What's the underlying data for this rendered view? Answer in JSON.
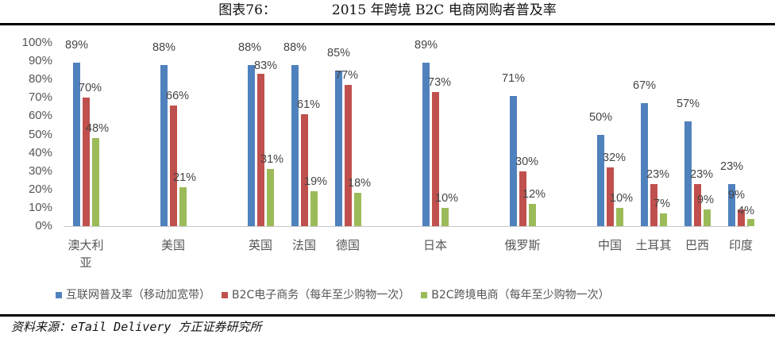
{
  "header": {
    "figure_label": "图表76：",
    "title": "2015 年跨境 B2C 电商网购者普及率"
  },
  "source": {
    "text": "资料来源：eTail Delivery   方正证券研究所"
  },
  "colors": {
    "series_0": "#4F81BD",
    "series_1": "#C0504D",
    "series_2": "#9BBB59"
  },
  "legend": [
    {
      "label": "互联网普及率（移动加宽带）",
      "color": "#4F81BD"
    },
    {
      "label": "B2C电子商务（每年至少购物一次）",
      "color": "#C0504D"
    },
    {
      "label": "B2C跨境电商（每年至少购物一次）",
      "color": "#9BBB59"
    }
  ],
  "y_ticks": [
    "100%",
    "90%",
    "80%",
    "70%",
    "60%",
    "50%",
    "40%",
    "30%",
    "20%",
    "10%",
    "0%"
  ],
  "chart_data": {
    "type": "bar",
    "title": "2015 年跨境 B2C 电商网购者普及率",
    "xlabel": "",
    "ylabel": "",
    "ylim": [
      0,
      100
    ],
    "y_unit": "%",
    "grid": false,
    "legend_position": "bottom",
    "categories": [
      "澳大利亚",
      "美国",
      "英国",
      "法国",
      "德国",
      "日本",
      "俄罗斯",
      "中国",
      "土耳其",
      "巴西",
      "印度"
    ],
    "series": [
      {
        "name": "互联网普及率（移动加宽带）",
        "values": [
          89,
          88,
          88,
          88,
          85,
          89,
          71,
          50,
          67,
          57,
          23
        ]
      },
      {
        "name": "B2C电子商务（每年至少购物一次）",
        "values": [
          70,
          66,
          83,
          61,
          77,
          73,
          30,
          32,
          23,
          23,
          9
        ]
      },
      {
        "name": "B2C跨境电商（每年至少购物一次）",
        "values": [
          48,
          21,
          31,
          19,
          18,
          10,
          12,
          10,
          7,
          9,
          4
        ]
      }
    ]
  }
}
